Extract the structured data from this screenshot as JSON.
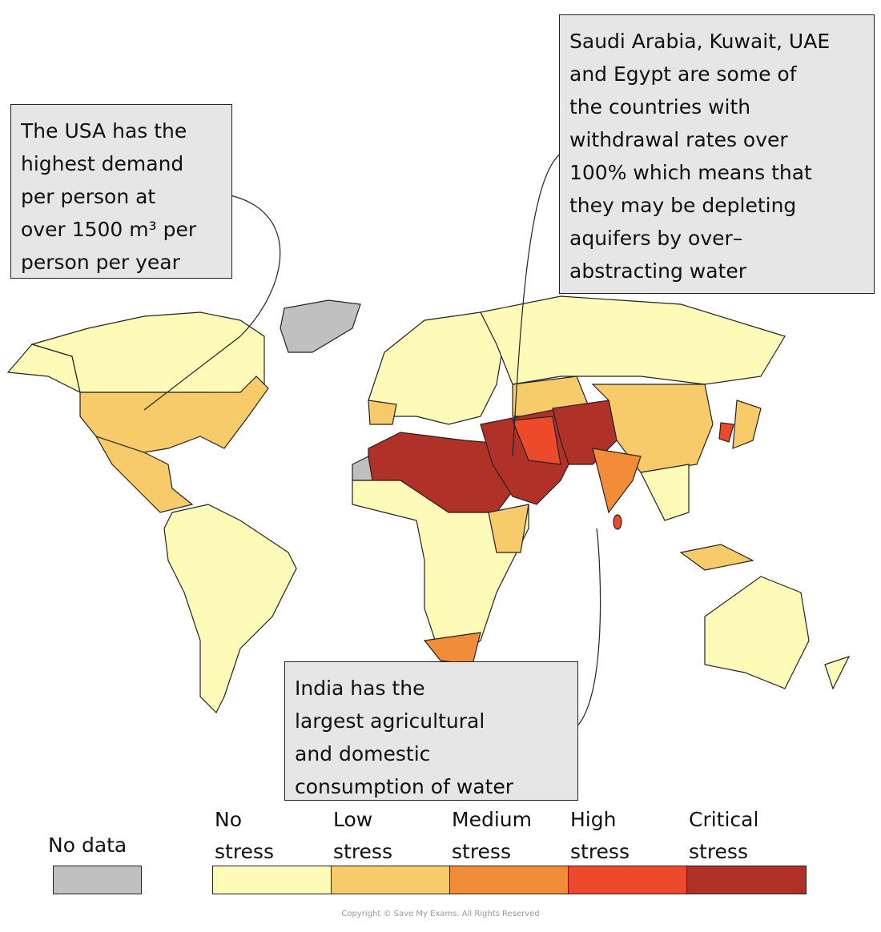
{
  "annotations": [
    {
      "lines": [
        "The USA has the",
        "highest demand",
        "per person at",
        "over 1500 m³ per",
        "person per year"
      ]
    },
    {
      "lines": [
        "Saudi Arabia, Kuwait, UAE",
        "and Egypt are some of",
        "the countries with",
        "withdrawal rates over",
        "100% which means that",
        "they may be depleting",
        "aquifers by over–",
        "abstracting water"
      ]
    },
    {
      "lines": [
        "India has the",
        "largest agricultural",
        "and domestic",
        "consumption of water"
      ]
    }
  ],
  "legend": {
    "no_data": {
      "label": "No data",
      "color": "#c0c0c0"
    },
    "items": [
      {
        "lines": [
          "No",
          "stress"
        ],
        "color": "#fefab8"
      },
      {
        "lines": [
          "Low",
          "stress"
        ],
        "color": "#f8cb6a"
      },
      {
        "lines": [
          "Medium",
          "stress"
        ],
        "color": "#f28c38"
      },
      {
        "lines": [
          "High",
          "stress"
        ],
        "color": "#ed4a2c"
      },
      {
        "lines": [
          "Critical",
          "stress"
        ],
        "color": "#b03127"
      }
    ]
  },
  "copyright": "Copyright © Save My Exams. All Rights Reserved"
}
